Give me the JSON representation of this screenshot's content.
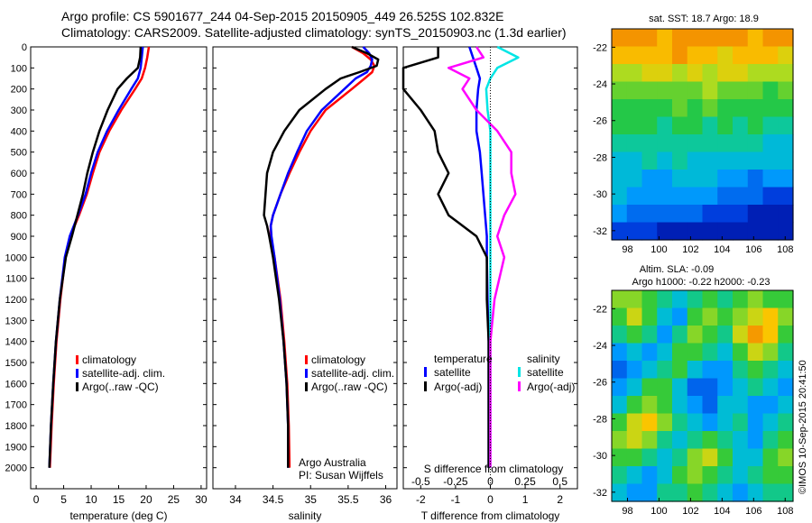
{
  "header": {
    "line1": "Argo profile: CS 5901677_244 04-Sep-2015 20150905_449 26.525S 102.832E",
    "line2": "Climatology: CARS2009. Satellite-adjusted climatology: synTS_20150903.nc (1.3d earlier)"
  },
  "colors": {
    "climatology": "#ff0000",
    "satellite_adj": "#0000ff",
    "argo": "#000000",
    "salinity_satellite": "#00e5e5",
    "salinity_argo": "#ff00ff"
  },
  "legend_left": [
    "climatology",
    "satellite-adj. clim.",
    "Argo(..raw -QC)"
  ],
  "legend_right": {
    "temperature_title": "temperature",
    "salinity_title": "salinity",
    "satellite": "satellite",
    "argo": "Argo(-adj)"
  },
  "credits": {
    "line1": "Argo Australia",
    "line2": "PI: Susan Wijffels"
  },
  "maps": {
    "sst_title": "sat. SST: 18.7 Argo: 18.9",
    "sla_title1": "Altim. SLA: -0.09",
    "sla_title2": "Argo h1000: -0.22 h2000: -0.23",
    "lat_ticks": [
      "-22",
      "-24",
      "-26",
      "-28",
      "-30",
      "-32"
    ],
    "lon_ticks": [
      "98",
      "100",
      "102",
      "104",
      "106",
      "108"
    ],
    "stamp": "©IMOS 10-Sep-2015 20:41:50"
  },
  "chart_data": [
    {
      "type": "line",
      "xlabel": "temperature (deg C)",
      "ylabel": "",
      "xlim": [
        -1,
        31
      ],
      "ylim": [
        2100,
        0
      ],
      "xticks": [
        0,
        5,
        10,
        15,
        20,
        25,
        30
      ],
      "yticks": [
        0,
        100,
        200,
        300,
        400,
        500,
        600,
        700,
        800,
        900,
        1000,
        1100,
        1200,
        1300,
        1400,
        1500,
        1600,
        1700,
        1800,
        1900,
        2000
      ],
      "depth": [
        0,
        50,
        100,
        150,
        200,
        300,
        400,
        500,
        600,
        700,
        800,
        900,
        1000,
        1200,
        1400,
        1600,
        1800,
        2000
      ],
      "series": [
        {
          "name": "climatology",
          "color": "#ff0000",
          "values": [
            20.5,
            20.2,
            19.8,
            19.2,
            18.0,
            15.5,
            13.3,
            11.5,
            10.3,
            9.2,
            7.8,
            6.2,
            5.3,
            4.4,
            3.7,
            3.2,
            2.8,
            2.5
          ]
        },
        {
          "name": "satellite-adj. clim.",
          "color": "#0000ff",
          "values": [
            19.4,
            19.2,
            19.0,
            18.5,
            17.3,
            15.0,
            12.9,
            11.2,
            10.0,
            9.0,
            7.6,
            6.1,
            5.2,
            4.3,
            3.6,
            3.1,
            2.7,
            2.4
          ]
        },
        {
          "name": "Argo(..raw -QC)",
          "color": "#000000",
          "values": [
            19.0,
            18.9,
            18.5,
            16.5,
            14.8,
            13.0,
            11.5,
            10.3,
            9.3,
            8.5,
            7.5,
            6.5,
            5.4,
            4.3,
            3.6,
            3.1,
            2.7,
            2.4
          ]
        }
      ]
    },
    {
      "type": "line",
      "xlabel": "salinity",
      "ylabel": "",
      "xlim": [
        33.7,
        36.15
      ],
      "ylim": [
        2100,
        0
      ],
      "xticks": [
        34,
        34.5,
        35,
        35.5,
        36
      ],
      "depth": [
        0,
        30,
        60,
        90,
        120,
        150,
        200,
        300,
        400,
        500,
        600,
        700,
        800,
        850,
        900,
        1000,
        1200,
        1400,
        1600,
        1800,
        2000
      ],
      "series": [
        {
          "name": "climatology",
          "color": "#ff0000",
          "values": [
            35.55,
            35.7,
            35.8,
            35.85,
            35.82,
            35.72,
            35.55,
            35.2,
            35.0,
            34.85,
            34.72,
            34.6,
            34.5,
            34.47,
            34.47,
            34.52,
            34.6,
            34.65,
            34.69,
            34.71,
            34.72
          ]
        },
        {
          "name": "satellite-adj. clim.",
          "color": "#0000ff",
          "values": [
            35.7,
            35.78,
            35.82,
            35.8,
            35.75,
            35.6,
            35.45,
            35.15,
            34.95,
            34.82,
            34.7,
            34.6,
            34.5,
            34.47,
            34.48,
            34.52,
            34.59,
            34.64,
            34.68,
            34.7,
            34.7
          ]
        },
        {
          "name": "Argo(..raw -QC)",
          "color": "#000000",
          "values": [
            35.55,
            35.75,
            35.9,
            35.88,
            35.65,
            35.4,
            35.2,
            34.85,
            34.65,
            34.5,
            34.42,
            34.4,
            34.38,
            34.42,
            34.45,
            34.5,
            34.58,
            34.64,
            34.68,
            34.7,
            34.7
          ]
        }
      ]
    },
    {
      "type": "line",
      "xlabel": "T difference from climatology",
      "ylabel": "",
      "xlim": [
        -2.5,
        2.5
      ],
      "ylim": [
        2100,
        0
      ],
      "xticks": [
        -2,
        -1,
        0,
        1,
        2
      ],
      "secondary_xlabel": "S difference from climatology",
      "secondary_xlim": [
        -0.625,
        0.625
      ],
      "secondary_xticks": [
        -0.5,
        -0.25,
        0,
        0.25,
        0.5
      ],
      "depth": [
        0,
        50,
        100,
        150,
        200,
        300,
        400,
        500,
        600,
        700,
        800,
        900,
        1000,
        1200,
        1400,
        1600,
        1800,
        2000
      ],
      "series": [
        {
          "name": "temperature satellite",
          "color": "#0000ff",
          "values": [
            -0.6,
            -0.5,
            -0.4,
            -0.3,
            -0.35,
            -0.4,
            -0.4,
            -0.3,
            -0.25,
            -0.2,
            -0.15,
            -0.1,
            -0.1,
            -0.08,
            -0.05,
            -0.05,
            -0.05,
            -0.05
          ]
        },
        {
          "name": "temperature Argo(-adj)",
          "color": "#000000",
          "values": [
            -1.5,
            -1.5,
            -2.5,
            -2.5,
            -2.5,
            -2.0,
            -1.6,
            -1.5,
            -1.2,
            -1.5,
            -1.2,
            -0.4,
            -0.1,
            -0.1,
            -0.05,
            -0.05,
            -0.05,
            -0.05
          ]
        },
        {
          "name": "salinity satellite",
          "color": "#00e5e5",
          "values": [
            0.05,
            0.2,
            0.05,
            0.0,
            -0.03,
            -0.02,
            0.0,
            0.0,
            0.0,
            0.0,
            0.0,
            0.0,
            0.0,
            0.0,
            0.0,
            0.0,
            0.0,
            0.0
          ]
        },
        {
          "name": "salinity Argo(-adj)",
          "color": "#ff00ff",
          "values": [
            -0.1,
            -0.05,
            -0.3,
            -0.15,
            -0.2,
            -0.1,
            0.05,
            0.15,
            0.15,
            0.18,
            0.1,
            0.05,
            0.1,
            0.03,
            0.0,
            0.0,
            0.0,
            0.0
          ]
        }
      ]
    },
    {
      "type": "heatmap",
      "title": "sat. SST: 18.7 Argo: 18.9",
      "xlim": [
        97,
        108.5
      ],
      "ylim": [
        -32.5,
        -21
      ],
      "rows": 12,
      "cols": 12,
      "row_order": "north_to_south",
      "values": [
        [
          22,
          22,
          22,
          21,
          22,
          22,
          22,
          22,
          22,
          21,
          22,
          22
        ],
        [
          21,
          21,
          21,
          21,
          22,
          21,
          21,
          20,
          21,
          21,
          21,
          20
        ],
        [
          19,
          19,
          20,
          20,
          19,
          20,
          19,
          20,
          20,
          19,
          19,
          19
        ],
        [
          18,
          18,
          18,
          18,
          18,
          18,
          19,
          18,
          18,
          18,
          17,
          18
        ],
        [
          17,
          17,
          17,
          17,
          18,
          17,
          18,
          17,
          17,
          17,
          17,
          17
        ],
        [
          17,
          17,
          17,
          16,
          17,
          17,
          16,
          17,
          16,
          17,
          16,
          16
        ],
        [
          16,
          16,
          16,
          16,
          16,
          16,
          16,
          16,
          16,
          16,
          15,
          15
        ],
        [
          15,
          15,
          16,
          15,
          16,
          15,
          15,
          15,
          15,
          15,
          15,
          15
        ],
        [
          15,
          15,
          14,
          14,
          15,
          15,
          15,
          14,
          14,
          13,
          14,
          14
        ],
        [
          15,
          14,
          14,
          14,
          14,
          14,
          14,
          13,
          13,
          13,
          12,
          12
        ],
        [
          14,
          13,
          13,
          13,
          13,
          13,
          12,
          12,
          12,
          11,
          11,
          11
        ],
        [
          12,
          12,
          12,
          11,
          11,
          11,
          11,
          11,
          11,
          11,
          11,
          11
        ]
      ]
    },
    {
      "type": "heatmap",
      "title": "Altim. SLA: -0.09",
      "xlim": [
        97,
        108.5
      ],
      "ylim": [
        -32.5,
        -21
      ],
      "rows": 12,
      "cols": 12,
      "row_order": "north_to_south",
      "values": [
        [
          0.2,
          0.2,
          0.1,
          0.0,
          -0.1,
          0.0,
          0.1,
          0.0,
          0.1,
          0.2,
          0.1,
          0.1
        ],
        [
          0.1,
          0.3,
          0.1,
          -0.1,
          -0.2,
          0.1,
          0.2,
          0.1,
          0.2,
          0.3,
          0.4,
          0.2
        ],
        [
          0.0,
          0.1,
          0.0,
          -0.2,
          0.0,
          0.2,
          0.1,
          0.0,
          0.3,
          0.5,
          0.4,
          0.1
        ],
        [
          -0.2,
          -0.1,
          -0.2,
          -0.1,
          0.1,
          0.1,
          0.0,
          -0.1,
          0.1,
          0.3,
          0.2,
          0.0
        ],
        [
          -0.3,
          -0.2,
          -0.1,
          0.0,
          0.1,
          -0.1,
          -0.2,
          -0.2,
          0.0,
          0.1,
          0.0,
          -0.1
        ],
        [
          -0.2,
          -0.1,
          0.1,
          0.1,
          -0.1,
          -0.3,
          -0.3,
          -0.2,
          -0.1,
          0.0,
          -0.1,
          -0.2
        ],
        [
          -0.1,
          0.1,
          0.2,
          0.1,
          -0.1,
          -0.2,
          -0.3,
          -0.1,
          -0.1,
          -0.2,
          -0.2,
          -0.1
        ],
        [
          0.1,
          0.3,
          0.4,
          0.2,
          0.0,
          -0.1,
          -0.2,
          -0.1,
          0.0,
          -0.2,
          -0.1,
          0.0
        ],
        [
          0.2,
          0.3,
          0.2,
          0.0,
          -0.1,
          0.0,
          0.1,
          0.0,
          -0.1,
          -0.2,
          0.0,
          0.1
        ],
        [
          0.1,
          0.1,
          0.0,
          -0.1,
          0.0,
          0.2,
          0.3,
          0.1,
          -0.1,
          -0.1,
          0.1,
          0.2
        ],
        [
          0.0,
          -0.1,
          -0.2,
          -0.1,
          0.1,
          0.2,
          0.1,
          0.0,
          -0.1,
          0.0,
          0.1,
          0.1
        ],
        [
          -0.1,
          -0.2,
          -0.2,
          0.0,
          0.0,
          0.1,
          0.0,
          -0.1,
          -0.2,
          -0.1,
          0.0,
          0.0
        ]
      ]
    }
  ]
}
